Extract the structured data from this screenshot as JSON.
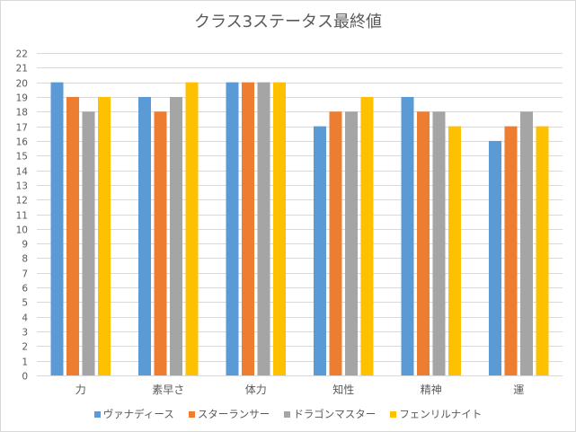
{
  "chart_data": {
    "type": "bar",
    "title": "クラス3ステータス最終値",
    "xlabel": "",
    "ylabel": "",
    "ylim": [
      0,
      22
    ],
    "yticks": [
      "0",
      "1",
      "2",
      "3",
      "4",
      "5",
      "6",
      "7",
      "8",
      "9",
      "10",
      "11",
      "12",
      "13",
      "14",
      "15",
      "16",
      "17",
      "18",
      "19",
      "20",
      "21",
      "22"
    ],
    "grid": true,
    "legend_position": "bottom",
    "categories": [
      "力",
      "素早さ",
      "体力",
      "知性",
      "精神",
      "運"
    ],
    "series": [
      {
        "name": "ヴァナディース",
        "color": "#5b9bd5",
        "values": [
          20,
          19,
          20,
          17,
          19,
          16
        ]
      },
      {
        "name": "スターランサー",
        "color": "#ed7d31",
        "values": [
          19,
          18,
          20,
          18,
          18,
          17
        ]
      },
      {
        "name": "ドラゴンマスター",
        "color": "#a5a5a5",
        "values": [
          18,
          19,
          20,
          18,
          18,
          18
        ]
      },
      {
        "name": "フェンリルナイト",
        "color": "#ffc000",
        "values": [
          19,
          20,
          20,
          19,
          17,
          17
        ]
      }
    ]
  }
}
